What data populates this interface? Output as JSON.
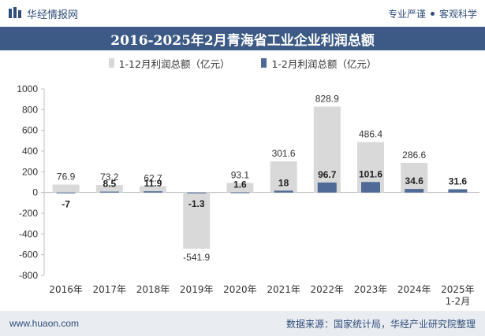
{
  "header": {
    "brand": "华经情报网",
    "slogan_left": "专业严谨",
    "slogan_right": "客观科学"
  },
  "footer": {
    "url": "www.huaon.com",
    "source": "数据来源：国家统计局，华经产业研究院整理"
  },
  "colors": {
    "series_full_year": "#d9d9d9",
    "series_jan_feb": "#4f6a96",
    "title_bg": "#3c5a85",
    "brand": "#2f4d7a"
  },
  "chart_data": {
    "type": "bar",
    "title": "2016-2025年2月青海省工业企业利润总额",
    "categories": [
      "2016年",
      "2017年",
      "2018年",
      "2019年",
      "2020年",
      "2021年",
      "2022年",
      "2023年",
      "2024年",
      "2025年\n1-2月"
    ],
    "series": [
      {
        "name": "1-12月利润总额（亿元）",
        "values": [
          76.9,
          73.2,
          62.7,
          -541.9,
          93.1,
          301.6,
          828.9,
          486.4,
          286.6,
          null
        ]
      },
      {
        "name": "1-2月利润总额（亿元）",
        "values": [
          -7,
          8.5,
          11.9,
          -1.3,
          1.6,
          18,
          96.7,
          101.6,
          34.6,
          31.6
        ]
      }
    ],
    "ylim": [
      -800,
      1000
    ],
    "yticks": [
      -800,
      -600,
      -400,
      -200,
      0,
      200,
      400,
      600,
      800,
      1000
    ],
    "legend_position": "top-center"
  }
}
